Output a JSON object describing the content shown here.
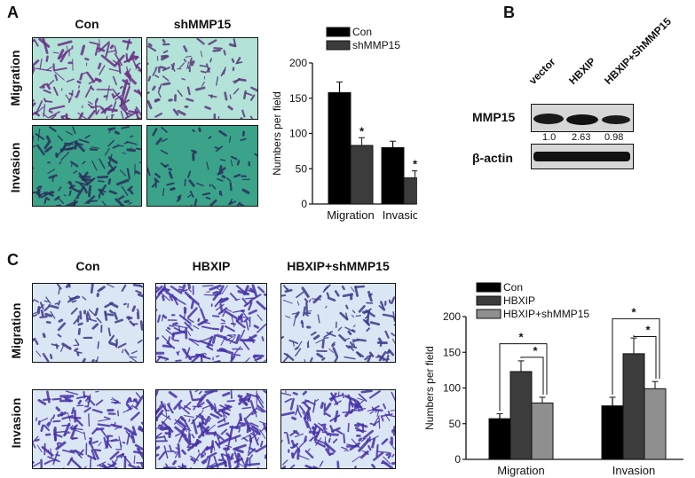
{
  "panels": {
    "A": {
      "label": "A",
      "columns": [
        "Con",
        "shMMP15"
      ],
      "rows": [
        "Migration",
        "Invasion"
      ]
    },
    "B": {
      "label": "B",
      "lanes": [
        "vector",
        "HBXIP",
        "HBXIP+ShMMP15"
      ],
      "blots": [
        "MMP15",
        "β-actin"
      ],
      "ratios": [
        "1.0",
        "2.63",
        "0.98"
      ]
    },
    "C": {
      "label": "C",
      "columns": [
        "Con",
        "HBXIP",
        "HBXIP+shMMP15"
      ],
      "rows": [
        "Migration",
        "Invasion"
      ]
    }
  },
  "colors": {
    "series_dark": "#000000",
    "series_mid": "#3c3c3c",
    "series_light": "#8f8f8f",
    "migration_stain": "#6a2d86",
    "a_background": "#b3e3d8",
    "a_invasion_background": "#3aa38a",
    "c_background": "#dbe6f5",
    "c_stain": "#4632a6"
  },
  "chart_data": [
    {
      "id": "A",
      "type": "bar",
      "categories": [
        "Migration",
        "Invasion"
      ],
      "series": [
        {
          "name": "Con",
          "values": [
            158,
            80
          ],
          "errors": [
            15,
            9
          ]
        },
        {
          "name": "shMMP15",
          "values": [
            83,
            37
          ],
          "errors": [
            11,
            10
          ]
        }
      ],
      "ylabel": "Numbers per field",
      "ylim": [
        0,
        200
      ],
      "yticks": [
        "0",
        "50",
        "100",
        "150",
        "200"
      ],
      "annotations": [
        "*",
        "*"
      ],
      "legend": "top"
    },
    {
      "id": "C",
      "type": "bar",
      "categories": [
        "Migration",
        "Invasion"
      ],
      "series": [
        {
          "name": "Con",
          "values": [
            57,
            75
          ],
          "errors": [
            7,
            12
          ]
        },
        {
          "name": "HBXIP",
          "values": [
            123,
            148
          ],
          "errors": [
            15,
            22
          ]
        },
        {
          "name": "HBXIP+shMMP15",
          "values": [
            79,
            99
          ],
          "errors": [
            8,
            10
          ]
        }
      ],
      "ylabel": "Numbers per field",
      "ylim": [
        0,
        200
      ],
      "yticks": [
        "0",
        "50",
        "100",
        "150",
        "200"
      ],
      "annotations": [
        "*",
        "*",
        "*",
        "*"
      ],
      "legend": "top"
    }
  ]
}
